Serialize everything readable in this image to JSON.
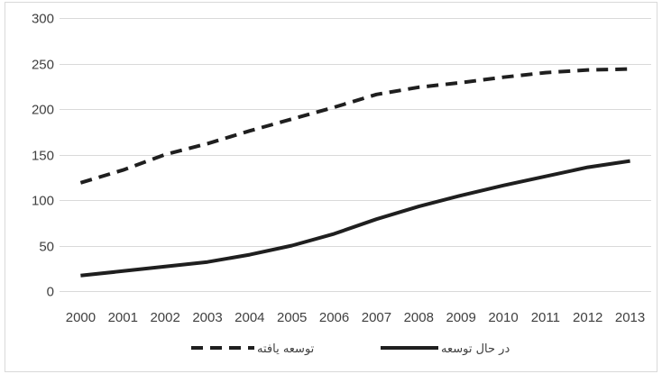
{
  "chart_data": {
    "type": "line",
    "title": "",
    "xlabel": "",
    "ylabel": "",
    "x": [
      "2000",
      "2001",
      "2002",
      "2003",
      "2004",
      "2005",
      "2006",
      "2007",
      "2008",
      "2009",
      "2010",
      "2011",
      "2012",
      "2013"
    ],
    "ylim": [
      0,
      300
    ],
    "yticks": [
      0,
      50,
      100,
      150,
      200,
      250,
      300
    ],
    "grid": true,
    "legend_position": "bottom",
    "series": [
      {
        "name": "توسعه یافته",
        "style": "dashed",
        "color": "#1f1f1f",
        "values": [
          119,
          133,
          150,
          162,
          176,
          189,
          202,
          216,
          224,
          229,
          235,
          240,
          243,
          244
        ]
      },
      {
        "name": "در حال توسعه",
        "style": "solid",
        "color": "#1f1f1f",
        "values": [
          17,
          22,
          27,
          32,
          40,
          50,
          63,
          79,
          93,
          105,
          116,
          126,
          136,
          143
        ]
      }
    ]
  }
}
